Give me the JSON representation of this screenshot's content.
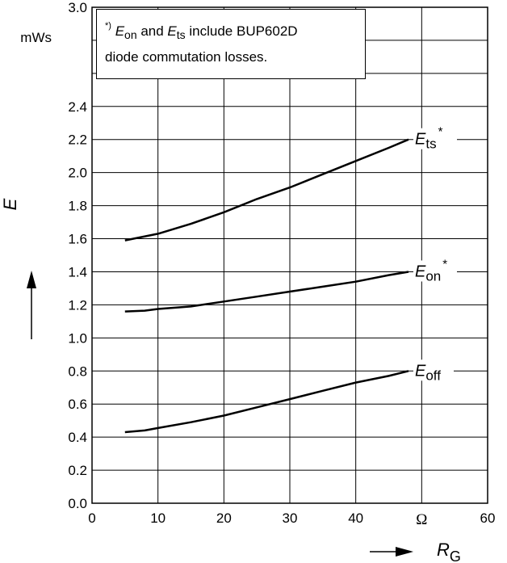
{
  "chart_data": {
    "type": "line",
    "unit_label": "mWs",
    "ylabel": "E",
    "xlabel_symbol": "R",
    "xlabel_subscript": "G",
    "x_unit_label": "Ω",
    "xlim": [
      0,
      60
    ],
    "ylim": [
      0,
      3.0
    ],
    "grid": true,
    "x_ticks": [
      "0",
      "10",
      "20",
      "30",
      "40",
      "60"
    ],
    "y_ticks": [
      "0.0",
      "0.2",
      "0.4",
      "0.6",
      "0.8",
      "1.0",
      "1.2",
      "1.4",
      "1.6",
      "1.8",
      "2.0",
      "2.2",
      "2.4",
      "3.0"
    ],
    "note": {
      "asterisk": "*)",
      "e1": "E",
      "e1_sub": "on",
      "mid": " and ",
      "e2": "E",
      "e2_sub": "ts",
      "rest1": " include BUP602D",
      "line2": "diode commutation losses."
    },
    "series": [
      {
        "label": "E",
        "label_sub": "ts",
        "label_sup": "*",
        "x": [
          5,
          10,
          15,
          20,
          25,
          30,
          35,
          40,
          45,
          48
        ],
        "y": [
          1.59,
          1.63,
          1.69,
          1.76,
          1.84,
          1.91,
          1.99,
          2.07,
          2.15,
          2.2
        ]
      },
      {
        "label": "E",
        "label_sub": "on",
        "label_sup": "*",
        "x": [
          5,
          8,
          10,
          15,
          20,
          25,
          30,
          35,
          40,
          45,
          48
        ],
        "y": [
          1.16,
          1.165,
          1.175,
          1.19,
          1.22,
          1.25,
          1.28,
          1.31,
          1.34,
          1.38,
          1.4
        ]
      },
      {
        "label": "E",
        "label_sub": "off",
        "label_sup": "",
        "x": [
          5,
          8,
          10,
          15,
          20,
          25,
          30,
          35,
          40,
          45,
          48
        ],
        "y": [
          0.43,
          0.44,
          0.455,
          0.49,
          0.53,
          0.58,
          0.63,
          0.68,
          0.73,
          0.77,
          0.8
        ]
      }
    ]
  }
}
